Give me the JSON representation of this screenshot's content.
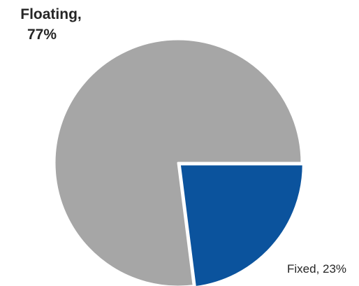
{
  "chart_data": {
    "type": "pie",
    "title": "",
    "slices": [
      {
        "name": "Fixed",
        "value": 23,
        "label": "Fixed, 23%",
        "color": "#0b539d",
        "label_weight": "normal"
      },
      {
        "name": "Floating",
        "value": 77,
        "label_lines": [
          "Floating,",
          "77%"
        ],
        "color": "#a6a6a6",
        "label_weight": "bold"
      }
    ],
    "start_angle_deg": 0,
    "direction": "clockwise",
    "legend": "none"
  }
}
